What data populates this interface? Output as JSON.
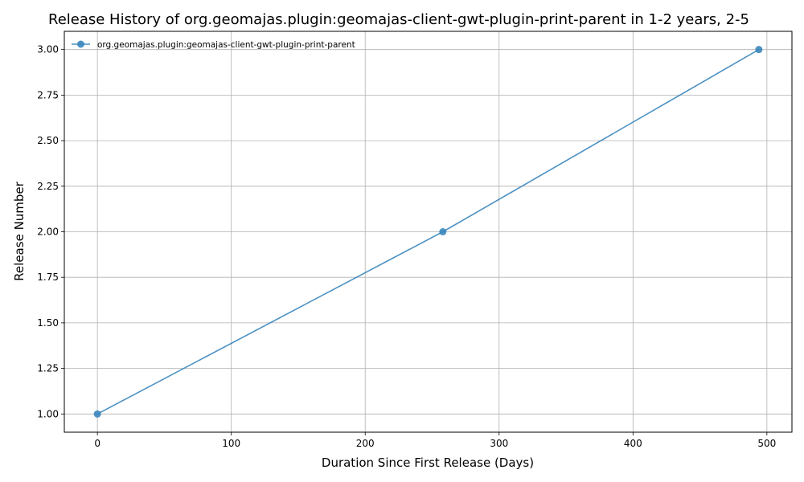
{
  "chart_data": {
    "type": "line",
    "title": "Release History of org.geomajas.plugin:geomajas-client-gwt-plugin-print-parent in 1-2 years, 2-5",
    "xlabel": "Duration Since First Release (Days)",
    "ylabel": "Release Number",
    "xlim": [
      -24.7,
      518.7
    ],
    "ylim": [
      0.9,
      3.1
    ],
    "xticks": [
      0,
      100,
      200,
      300,
      400,
      500
    ],
    "xtick_labels": [
      "0",
      "100",
      "200",
      "300",
      "400",
      "500"
    ],
    "yticks": [
      1.0,
      1.25,
      1.5,
      1.75,
      2.0,
      2.25,
      2.5,
      2.75,
      3.0
    ],
    "ytick_labels": [
      "1.00",
      "1.25",
      "1.50",
      "1.75",
      "2.00",
      "2.25",
      "2.50",
      "2.75",
      "3.00"
    ],
    "grid": true,
    "legend_position": "top-left",
    "series": [
      {
        "name": "org.geomajas.plugin:geomajas-client-gwt-plugin-print-parent",
        "color": "#3a86bd",
        "marker": "circle",
        "x": [
          0,
          258,
          494
        ],
        "y": [
          1,
          2,
          3
        ]
      }
    ]
  }
}
